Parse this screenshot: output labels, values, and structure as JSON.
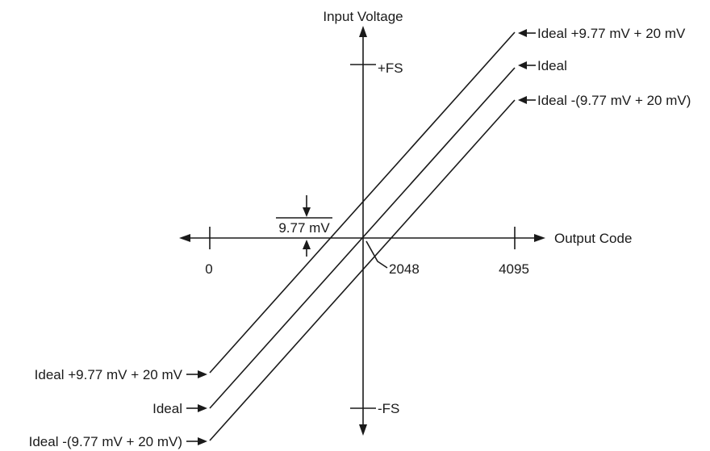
{
  "axes": {
    "y_title": "Input Voltage",
    "x_title": "Output Code",
    "y_top_label": "+FS",
    "y_bottom_label": "-FS",
    "x_left_label": "0",
    "x_mid_label": "2048",
    "x_right_label": "4095"
  },
  "lines": {
    "upper": "Ideal +9.77 mV + 20 mV",
    "ideal": "Ideal",
    "lower": "Ideal -(9.77 mV + 20 mV)"
  },
  "lsb_label": "9.77 mV"
}
